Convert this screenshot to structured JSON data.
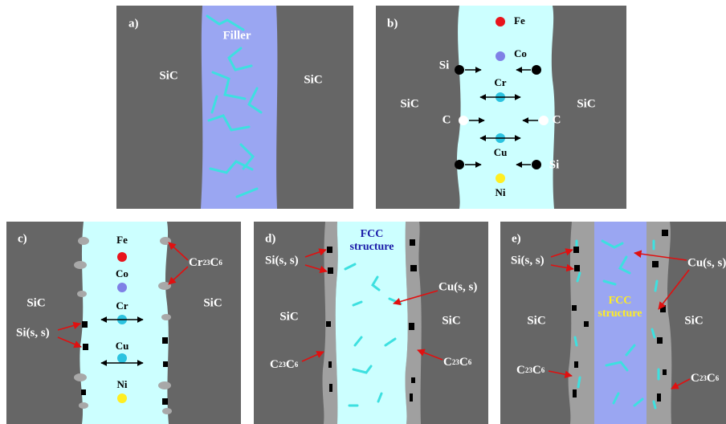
{
  "panels": [
    {
      "label": "a)",
      "left": "SiC",
      "filler": "Filler",
      "right": "SiC"
    },
    {
      "label": "b)",
      "left": "SiC",
      "right": "SiC",
      "elements": [
        "Fe",
        "Co",
        "Cr",
        "Cu",
        "Ni"
      ],
      "diffusing": [
        "Si",
        "C",
        "C",
        "Si"
      ]
    },
    {
      "label": "c)",
      "left": "SiC",
      "right": "SiC",
      "elements": [
        "Fe",
        "Co",
        "Cr",
        "Cu",
        "Ni"
      ],
      "carbide": [
        "Cr",
        "23",
        "C",
        "6"
      ],
      "silicon": "Si(s, s)"
    },
    {
      "label": "d)",
      "left": "SiC",
      "right": "SiC",
      "phase": [
        "FCC",
        "structure"
      ],
      "silicon": "Si(s, s)",
      "copper": "Cu(s, s)",
      "carbide_left": [
        "C",
        "23",
        "C",
        "6"
      ],
      "carbide_right": [
        "C",
        "23",
        "C",
        "6"
      ]
    },
    {
      "label": "e)",
      "left": "SiC",
      "right": "SiC",
      "phase": [
        "FCC",
        "structure"
      ],
      "silicon": "Si(s, s)",
      "copper": "Cu(s, s)",
      "carbide_left": [
        "C",
        "23",
        "C",
        "6"
      ],
      "carbide_right": [
        "C",
        "23",
        "C",
        "6"
      ]
    }
  ]
}
